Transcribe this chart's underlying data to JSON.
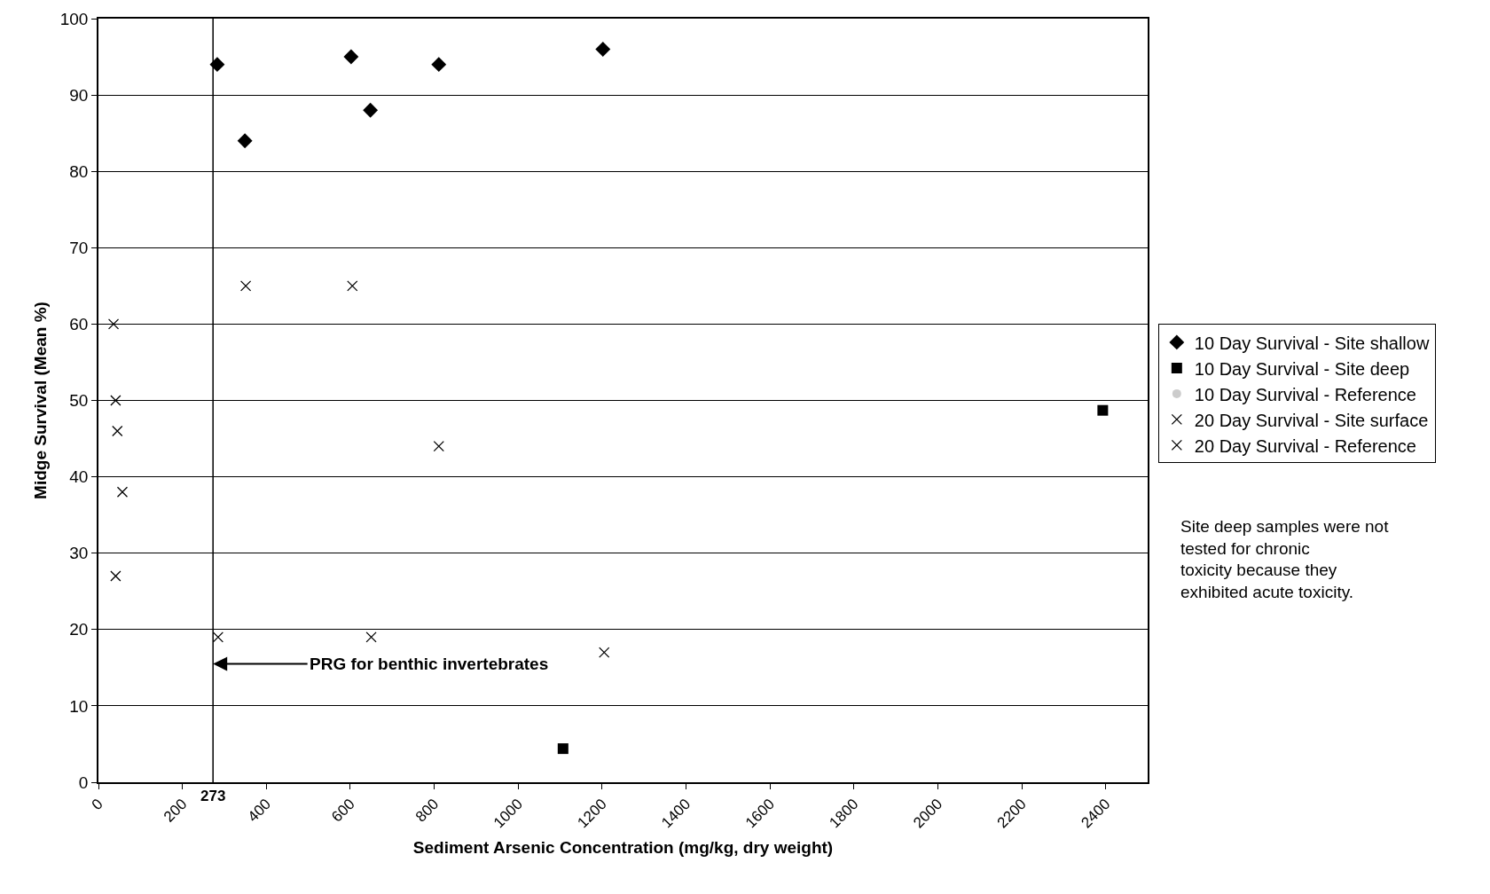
{
  "chart_data": {
    "type": "scatter",
    "xlabel": "Sediment Arsenic Concentration (mg/kg, dry weight)",
    "ylabel": "Midge Survival (Mean %)",
    "xlim": [
      0,
      2500
    ],
    "xticks": [
      0,
      200,
      400,
      600,
      800,
      1000,
      1200,
      1400,
      1600,
      1800,
      2000,
      2200,
      2400
    ],
    "ylim": [
      0,
      100
    ],
    "yticks": [
      0,
      10,
      20,
      30,
      40,
      50,
      60,
      70,
      80,
      90,
      100
    ],
    "grid": "y",
    "legend": "right",
    "series": [
      {
        "name": "10 Day Survival - Site shallow",
        "color": "#000000",
        "marker": "diamond",
        "x": [
          283,
          349,
          602,
          648,
          811,
          1202
        ],
        "values": [
          94,
          84,
          95,
          88,
          94,
          96
        ]
      },
      {
        "name": "10 Day Survival - Site deep",
        "color": "#000000",
        "marker": "square",
        "x": [
          1107,
          2393
        ],
        "values": [
          4.4,
          48.7
        ]
      },
      {
        "name": "10 Day Survival - Reference",
        "color": "#000000",
        "marker": "none"
      },
      {
        "name": "20 Day Survival - Site surface",
        "color": "#000000",
        "marker": "cross",
        "x": [
          351,
          605,
          811,
          285,
          650,
          1205
        ],
        "values": [
          65,
          65,
          44,
          19,
          19,
          17
        ]
      },
      {
        "name": "20 Day Survival - Reference",
        "color": "#000000",
        "marker": "cross",
        "x": [
          36,
          41,
          45,
          57,
          41
        ],
        "values": [
          60,
          50,
          46,
          38,
          27
        ]
      }
    ],
    "ref_lines": [
      {
        "axis": "x",
        "value": 273,
        "label": "273",
        "color": "#000000"
      }
    ],
    "annotations": [
      {
        "text": "PRG for benthic invertebrates",
        "x": 273,
        "y": 15.5
      },
      "Site deep samples were not tested for chronic toxicity because they exhibited acute toxicity."
    ]
  }
}
